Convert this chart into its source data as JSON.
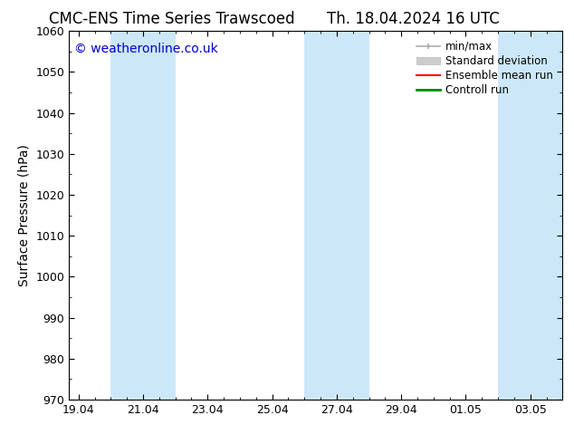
{
  "title_left": "CMC-ENS Time Series Trawscoed",
  "title_right": "Th. 18.04.2024 16 UTC",
  "ylabel": "Surface Pressure (hPa)",
  "ylim": [
    970,
    1060
  ],
  "yticks": [
    970,
    980,
    990,
    1000,
    1010,
    1020,
    1030,
    1040,
    1050,
    1060
  ],
  "xtick_labels": [
    "19.04",
    "21.04",
    "23.04",
    "25.04",
    "27.04",
    "29.04",
    "01.05",
    "03.05"
  ],
  "xtick_positions": [
    0,
    2,
    4,
    6,
    8,
    10,
    12,
    14
  ],
  "watermark": "© weatheronline.co.uk",
  "watermark_color": "#0000cc",
  "bg_color": "#ffffff",
  "shaded_bands": [
    {
      "x_start": 1.0,
      "x_end": 3.0,
      "color": "#cce8f8"
    },
    {
      "x_start": 7.0,
      "x_end": 9.0,
      "color": "#cce8f8"
    },
    {
      "x_start": 13.0,
      "x_end": 15.0,
      "color": "#cce8f8"
    }
  ],
  "legend_entries": [
    {
      "label": "min/max",
      "color": "#aaaaaa",
      "lw": 1.2,
      "style": "minmax"
    },
    {
      "label": "Standard deviation",
      "color": "#cccccc",
      "lw": 8,
      "style": "box"
    },
    {
      "label": "Ensemble mean run",
      "color": "#ff0000",
      "lw": 1.5,
      "style": "line"
    },
    {
      "label": "Controll run",
      "color": "#008800",
      "lw": 2.0,
      "style": "line"
    }
  ],
  "title_fontsize": 12,
  "axis_label_fontsize": 10,
  "tick_fontsize": 9,
  "watermark_fontsize": 10,
  "legend_fontsize": 8.5,
  "tick_color": "#000000",
  "spine_color": "#000000",
  "xlim": [
    -0.3,
    15.0
  ]
}
